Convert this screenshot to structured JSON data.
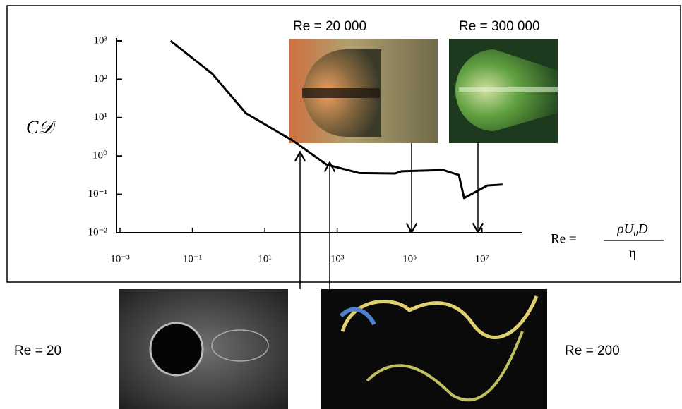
{
  "chart_data": {
    "type": "line",
    "xscale": "log",
    "yscale": "log",
    "y_label": "C𝒟",
    "x_label": {
      "lhs": "Re =",
      "numerator": "ρU₀D",
      "denominator": "η"
    },
    "x": [
      0.025,
      0.35,
      3,
      60,
      500,
      4000,
      40000,
      60000,
      850000,
      2300000,
      3200000,
      5000000,
      14000000,
      37000000
    ],
    "series": [
      {
        "color": "#000000",
        "values": [
          1000,
          140,
          13,
          2.5,
          0.6,
          0.36,
          0.35,
          0.4,
          0.43,
          0.32,
          0.08,
          0.1,
          0.17,
          0.18
        ]
      }
    ],
    "xlim": [
      0.001,
      100000000
    ],
    "ylim": [
      0.01,
      1000
    ],
    "xticks": [
      {
        "value": 0.001,
        "label": "10⁻³"
      },
      {
        "value": 0.1,
        "label": "10⁻¹"
      },
      {
        "value": 10,
        "label": "10¹"
      },
      {
        "value": 1000,
        "label": "10³"
      },
      {
        "value": 100000,
        "label": "10⁵"
      },
      {
        "value": 10000000,
        "label": "10⁷"
      }
    ],
    "yticks": [
      {
        "value": 0.01,
        "label": "10⁻²"
      },
      {
        "value": 0.1,
        "label": "10⁻¹"
      },
      {
        "value": 1,
        "label": "10⁰"
      },
      {
        "value": 10,
        "label": "10¹"
      },
      {
        "value": 100,
        "label": "10²"
      },
      {
        "value": 1000,
        "label": "10³"
      }
    ],
    "annotations": [
      {
        "label": "Re  = 20 000"
      },
      {
        "label": "Re  = 300 000"
      },
      {
        "label": "Re  = 20"
      },
      {
        "label": "Re  = 200"
      }
    ]
  }
}
